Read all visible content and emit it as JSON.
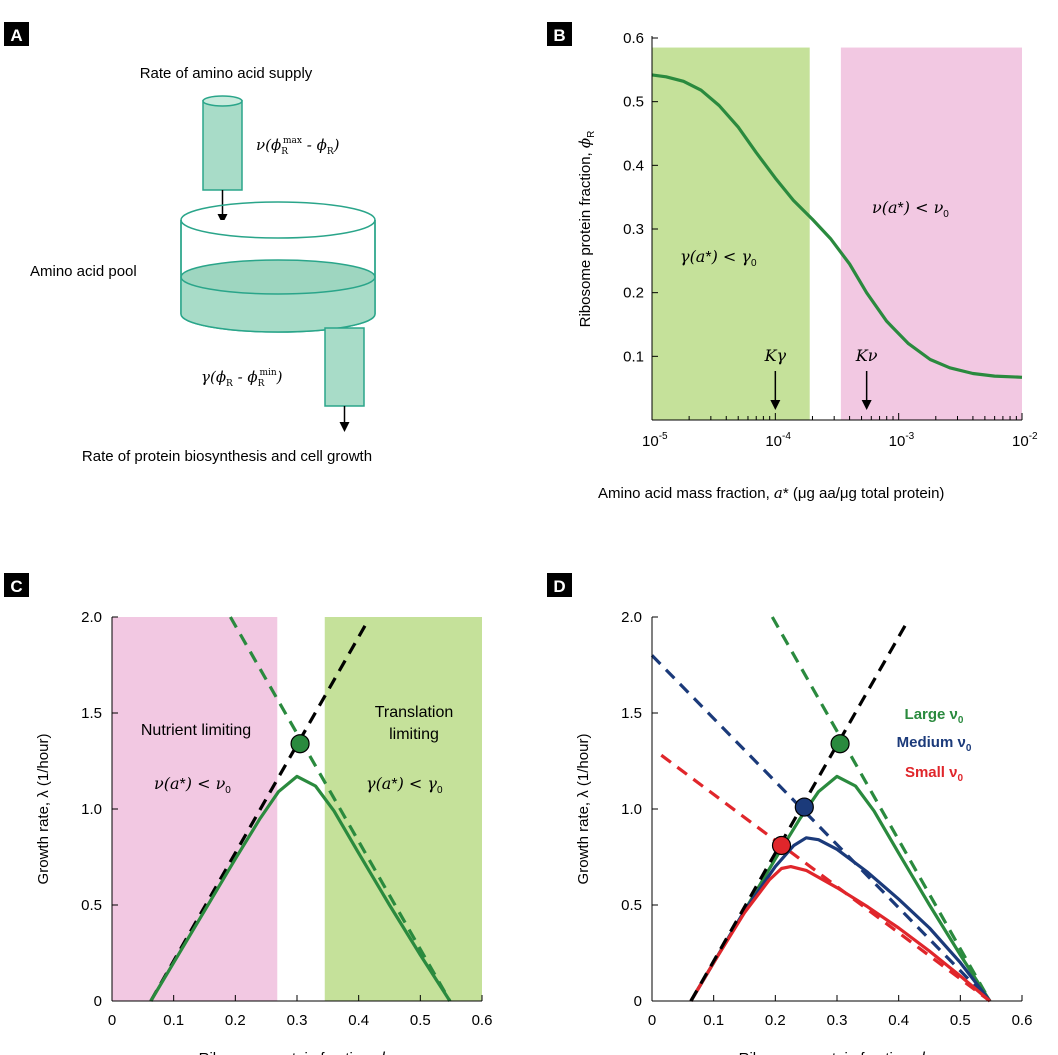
{
  "panel_labels": [
    "A",
    "B",
    "C",
    "D"
  ],
  "diagram": {
    "supply_title": "Rate of amino acid supply",
    "supply_formula": "ν(ϕ",
    "supply_formula_sub1": "R",
    "supply_formula_sup": "max",
    "supply_formula_mid": " - ϕ",
    "supply_formula_sub2": "R",
    "supply_formula_end": ")",
    "pool_label": "Amino acid pool",
    "consume_formula": "γ(ϕ",
    "consume_formula_sub1": "R",
    "consume_formula_mid": " - ϕ",
    "consume_formula_sub2": "R",
    "consume_formula_sup": "min",
    "consume_formula_end": ")",
    "output_label": "Rate of protein biosynthesis and cell growth",
    "colors": {
      "fill": "#a8dcc8",
      "stroke": "#2aa58a"
    }
  },
  "colors": {
    "green_region": "#c5e19a",
    "pink_region": "#f2c8e2",
    "green_curve": "#2a8a3e",
    "blue_curve": "#1b3a7a",
    "red_curve": "#e0262b",
    "black_dash": "#000000"
  },
  "chart_data": [
    {
      "panel": "B",
      "type": "line",
      "xscale": "log",
      "xlim": [
        1e-05,
        0.01
      ],
      "ylim": [
        0,
        0.6
      ],
      "xlabel": "Amino acid mass fraction, a* (μg aa/μg total protein)",
      "ylabel": "Ribosome protein fraction, ϕR",
      "xticks": [
        "10-5",
        "10-4",
        "10-3",
        "10-2"
      ],
      "yticks": [
        "0.1",
        "0.2",
        "0.3",
        "0.4",
        "0.5",
        "0.6"
      ],
      "regions": [
        {
          "name": "γ(a*) < γ0",
          "x_from": 1e-05,
          "x_to": 0.00019,
          "color": "green"
        },
        {
          "name": "ν(a*) < ν0",
          "x_from": 0.00034,
          "x_to": 0.01,
          "color": "pink"
        }
      ],
      "annotations": [
        {
          "text": "Kγ",
          "x": 0.0001
        },
        {
          "text": "Kν",
          "x": 0.00055
        }
      ],
      "series": [
        {
          "x": [
            1e-05,
            1.3e-05,
            1.8e-05,
            2.5e-05,
            3.5e-05,
            5e-05,
            7e-05,
            0.0001,
            0.00014,
            0.0002,
            0.00028,
            0.0004,
            0.00055,
            0.0008,
            0.0012,
            0.0018,
            0.0026,
            0.004,
            0.006,
            0.01
          ],
          "y": [
            0.542,
            0.539,
            0.532,
            0.518,
            0.494,
            0.46,
            0.42,
            0.38,
            0.345,
            0.315,
            0.285,
            0.245,
            0.2,
            0.155,
            0.12,
            0.095,
            0.082,
            0.073,
            0.069,
            0.067
          ]
        }
      ]
    },
    {
      "panel": "C",
      "type": "line",
      "xlim": [
        0,
        0.6
      ],
      "ylim": [
        0,
        2.0
      ],
      "xlabel": "Ribosome protein fraction, ϕR",
      "ylabel": "Growth rate, λ (1/hour)",
      "xticks": [
        "0",
        "0.1",
        "0.2",
        "0.3",
        "0.4",
        "0.5",
        "0.6"
      ],
      "yticks": [
        "0",
        "0.5",
        "1.0",
        "1.5",
        "2.0"
      ],
      "regions": [
        {
          "name": "Nutrient limiting",
          "condition": "ν(a*) < ν0",
          "x_from": 0,
          "x_to": 0.268,
          "color": "pink"
        },
        {
          "name": "Translation limiting",
          "condition": "γ(a*) < γ0",
          "x_from": 0.345,
          "x_to": 0.6,
          "color": "green"
        }
      ],
      "point": {
        "x": 0.305,
        "y": 1.34
      },
      "series": [
        {
          "style": "dashed-black",
          "x": [
            0.063,
            0.413
          ],
          "y": [
            0,
            1.97
          ]
        },
        {
          "style": "dashed-green",
          "x": [
            0.192,
            0.548
          ],
          "y": [
            2.0,
            0
          ]
        },
        {
          "style": "solid-green",
          "x": [
            0.063,
            0.1,
            0.15,
            0.2,
            0.24,
            0.27,
            0.3,
            0.33,
            0.36,
            0.4,
            0.45,
            0.5,
            0.548
          ],
          "y": [
            0,
            0.2,
            0.47,
            0.74,
            0.95,
            1.09,
            1.17,
            1.12,
            0.99,
            0.77,
            0.5,
            0.24,
            0
          ]
        }
      ]
    },
    {
      "panel": "D",
      "type": "line",
      "xlim": [
        0,
        0.6
      ],
      "ylim": [
        0,
        2.0
      ],
      "xlabel": "Ribosome protein fraction, ϕR",
      "ylabel": "Growth rate, λ (1/hour)",
      "xticks": [
        "0",
        "0.1",
        "0.2",
        "0.3",
        "0.4",
        "0.5",
        "0.6"
      ],
      "yticks": [
        "0",
        "0.5",
        "1.0",
        "1.5",
        "2.0"
      ],
      "legend": [
        {
          "name": "Large ν0",
          "color": "green"
        },
        {
          "name": "Medium ν0",
          "color": "blue"
        },
        {
          "name": "Small ν0",
          "color": "red"
        }
      ],
      "points": [
        {
          "color": "green",
          "x": 0.305,
          "y": 1.34
        },
        {
          "color": "blue",
          "x": 0.247,
          "y": 1.01
        },
        {
          "color": "red",
          "x": 0.21,
          "y": 0.81
        }
      ],
      "series": [
        {
          "style": "dashed-black",
          "x": [
            0.063,
            0.413
          ],
          "y": [
            0,
            1.97
          ]
        },
        {
          "style": "dashed-green",
          "x": [
            0.195,
            0.548
          ],
          "y": [
            2.0,
            0
          ]
        },
        {
          "style": "dashed-blue",
          "x": [
            0.0,
            0.548
          ],
          "y": [
            1.8,
            0
          ]
        },
        {
          "style": "dashed-red",
          "x": [
            0.015,
            0.548
          ],
          "y": [
            1.28,
            0
          ]
        },
        {
          "style": "solid-green",
          "x": [
            0.063,
            0.1,
            0.15,
            0.2,
            0.24,
            0.27,
            0.3,
            0.33,
            0.36,
            0.4,
            0.45,
            0.5,
            0.548
          ],
          "y": [
            0,
            0.2,
            0.47,
            0.74,
            0.95,
            1.09,
            1.17,
            1.12,
            0.99,
            0.77,
            0.5,
            0.24,
            0
          ]
        },
        {
          "style": "solid-blue",
          "x": [
            0.063,
            0.1,
            0.15,
            0.2,
            0.23,
            0.25,
            0.27,
            0.3,
            0.35,
            0.4,
            0.45,
            0.5,
            0.548
          ],
          "y": [
            0,
            0.2,
            0.47,
            0.7,
            0.81,
            0.85,
            0.84,
            0.79,
            0.67,
            0.53,
            0.38,
            0.2,
            0
          ]
        },
        {
          "style": "solid-red",
          "x": [
            0.063,
            0.1,
            0.15,
            0.19,
            0.21,
            0.225,
            0.25,
            0.3,
            0.35,
            0.4,
            0.45,
            0.5,
            0.548
          ],
          "y": [
            0,
            0.2,
            0.46,
            0.63,
            0.69,
            0.7,
            0.68,
            0.59,
            0.49,
            0.38,
            0.26,
            0.13,
            0
          ]
        }
      ]
    }
  ]
}
